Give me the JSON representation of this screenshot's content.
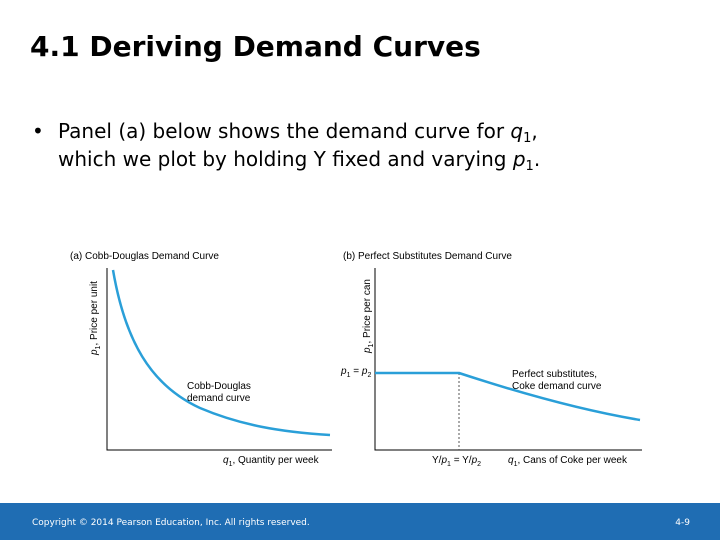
{
  "header": {
    "title": "4.1  Deriving Demand Curves"
  },
  "bullet": {
    "line_1": [
      "Panel (a) below shows the demand curve for ",
      "q",
      "1",
      ","
    ],
    "line_2": [
      "which we plot by holding Y fixed and varying ",
      "p",
      "1",
      "."
    ]
  },
  "panels": [
    {
      "title": "(a) Cobb-Douglas Demand Curve",
      "y_axis": [
        "p",
        "1",
        ", Price per unit"
      ],
      "x_axis": [
        "q",
        "1",
        ", Quantity per week"
      ],
      "curve_label": [
        "Cobb-Douglas",
        "demand curve"
      ]
    },
    {
      "title": "(b) Perfect Substitutes Demand Curve",
      "y_axis": [
        "p",
        "1",
        ", Price per can"
      ],
      "x_axis": [
        "q",
        "1",
        ", Cans of Coke per week"
      ],
      "y_marker": [
        "p",
        "1",
        " = ",
        "p",
        "2"
      ],
      "x_marker": [
        "Y/",
        "p",
        "1",
        " = Y/",
        "p",
        "2"
      ],
      "curve_label": [
        "Perfect substitutes,",
        "Coke demand curve"
      ]
    }
  ],
  "footer": {
    "copyright": "Copyright © 2014 Pearson Education, Inc. All rights reserved.",
    "page": "4-9"
  }
}
